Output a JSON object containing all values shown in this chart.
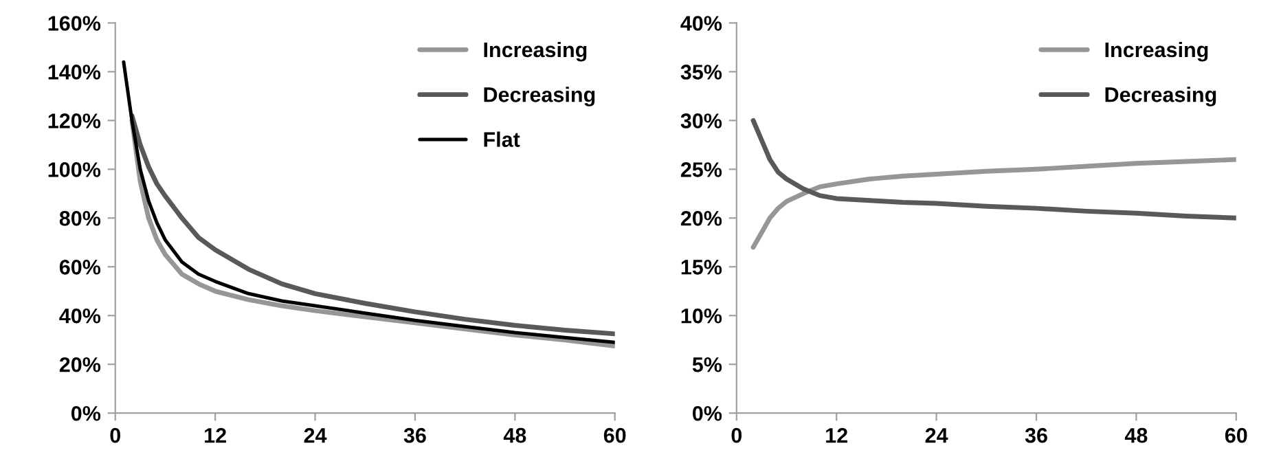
{
  "chart_data": [
    {
      "type": "line",
      "legend": "top right",
      "grid": false,
      "marker": "none",
      "line_style": "solid",
      "xlim": [
        0,
        60
      ],
      "xticks": [
        0,
        12,
        24,
        36,
        48,
        60
      ],
      "ylim": [
        0,
        160
      ],
      "yticks": [
        {
          "value": 0,
          "label": "0%"
        },
        {
          "value": 20,
          "label": "20%"
        },
        {
          "value": 40,
          "label": "40%"
        },
        {
          "value": 60,
          "label": "60%"
        },
        {
          "value": 80,
          "label": "80%"
        },
        {
          "value": 100,
          "label": "100%"
        },
        {
          "value": 120,
          "label": "120%"
        },
        {
          "value": 140,
          "label": "140%"
        },
        {
          "value": 160,
          "label": "160%"
        }
      ],
      "series": [
        {
          "name": "Increasing",
          "color": "#969696",
          "x": [
            2,
            3,
            4,
            5,
            6,
            8,
            10,
            12,
            16,
            20,
            24,
            30,
            36,
            42,
            48,
            54,
            60
          ],
          "values": [
            120,
            95,
            80,
            71,
            65,
            57,
            53,
            50,
            46.5,
            44,
            42,
            39.5,
            37,
            34.5,
            32,
            30,
            27.5
          ]
        },
        {
          "name": "Decreasing",
          "color": "#595959",
          "x": [
            2,
            3,
            4,
            5,
            6,
            8,
            10,
            12,
            16,
            20,
            24,
            30,
            36,
            42,
            48,
            54,
            60
          ],
          "values": [
            122,
            110,
            101,
            94,
            89,
            80,
            72,
            67,
            59,
            53,
            49,
            45,
            41.5,
            38.5,
            36,
            34,
            32.5
          ]
        },
        {
          "name": "Flat",
          "color": "#000000",
          "x": [
            1,
            2,
            3,
            4,
            5,
            6,
            8,
            10,
            12,
            16,
            20,
            24,
            30,
            36,
            42,
            48,
            54,
            60
          ],
          "values": [
            144,
            120,
            100,
            87,
            78,
            71,
            62,
            57,
            54,
            49,
            46,
            44,
            41,
            38,
            35.5,
            33,
            31,
            29
          ]
        }
      ]
    },
    {
      "type": "line",
      "legend": "top right",
      "grid": false,
      "marker": "none",
      "line_style": "solid",
      "xlim": [
        0,
        60
      ],
      "xticks": [
        0,
        12,
        24,
        36,
        48,
        60
      ],
      "ylim": [
        0,
        40
      ],
      "yticks": [
        {
          "value": 0,
          "label": "0%"
        },
        {
          "value": 5,
          "label": "5%"
        },
        {
          "value": 10,
          "label": "10%"
        },
        {
          "value": 15,
          "label": "15%"
        },
        {
          "value": 20,
          "label": "20%"
        },
        {
          "value": 25,
          "label": "25%"
        },
        {
          "value": 30,
          "label": "30%"
        },
        {
          "value": 35,
          "label": "35%"
        },
        {
          "value": 40,
          "label": "40%"
        }
      ],
      "series": [
        {
          "name": "Increasing",
          "color": "#969696",
          "x": [
            2,
            3,
            4,
            5,
            6,
            8,
            10,
            12,
            16,
            20,
            24,
            30,
            36,
            42,
            48,
            54,
            60
          ],
          "values": [
            17,
            18.5,
            20,
            21,
            21.7,
            22.5,
            23.2,
            23.5,
            24,
            24.3,
            24.5,
            24.8,
            25,
            25.3,
            25.6,
            25.8,
            26
          ]
        },
        {
          "name": "Decreasing",
          "color": "#595959",
          "x": [
            2,
            3,
            4,
            5,
            6,
            8,
            10,
            12,
            16,
            20,
            24,
            30,
            36,
            42,
            48,
            54,
            60
          ],
          "values": [
            30,
            28,
            26,
            24.7,
            24,
            23,
            22.3,
            22,
            21.8,
            21.6,
            21.5,
            21.2,
            21,
            20.7,
            20.5,
            20.2,
            20
          ]
        }
      ]
    }
  ]
}
